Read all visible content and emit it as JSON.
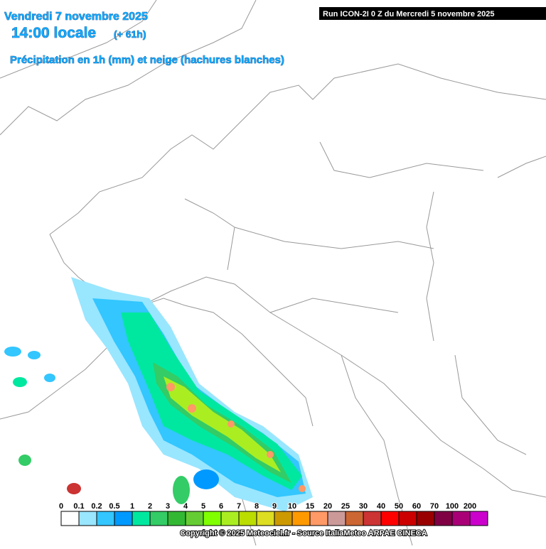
{
  "header": {
    "date": "Vendredi 7 novembre 2025",
    "time": "14:00 locale",
    "lead": "(+ 61h)",
    "subtitle": "Précipitation en 1h (mm) et neige (hachures blanches)",
    "run": "Run ICON-2I 0 Z du Mercredi 5 novembre 2025"
  },
  "legend": {
    "labels": [
      "0",
      "0.1",
      "0.2",
      "0.5",
      "1",
      "2",
      "3",
      "4",
      "5",
      "6",
      "7",
      "8",
      "9",
      "10",
      "15",
      "20",
      "25",
      "30",
      "40",
      "50",
      "60",
      "70",
      "100",
      "200"
    ],
    "colors": [
      "#ffffff",
      "#99e6ff",
      "#33c6ff",
      "#0099ff",
      "#00e8a0",
      "#33cc66",
      "#33b833",
      "#66cc33",
      "#80ff00",
      "#aaee22",
      "#bbdd00",
      "#dddd22",
      "#cc9900",
      "#ff9900",
      "#ff9966",
      "#cc9999",
      "#cc6633",
      "#cc3333",
      "#ff0000",
      "#cc0000",
      "#990000",
      "#800044",
      "#aa0077",
      "#cc00cc"
    ]
  },
  "footer": "Copyright © 2025 Meteociel.fr - Source ItaliaMeteo ARPAE CINECA"
}
